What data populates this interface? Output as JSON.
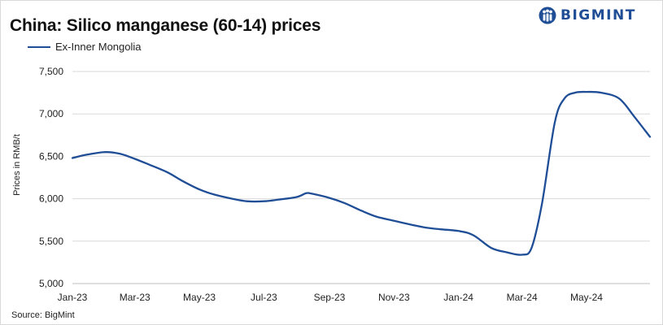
{
  "brand": {
    "name": "BIGMINT",
    "color": "#1f4e96",
    "icon": "bigmint-logo-icon"
  },
  "source": "Source: BigMint",
  "chart_data": {
    "type": "line",
    "title": "China: Silico manganese (60-14) prices",
    "xlabel": "",
    "ylabel": "Prices in RMB/t",
    "ylim": [
      5000,
      7500
    ],
    "yticks": [
      5000,
      5500,
      6000,
      6500,
      7000,
      7500
    ],
    "ytick_labels": [
      "5,000",
      "5,500",
      "6,000",
      "6,500",
      "7,000",
      "7,500"
    ],
    "x_start": "2023-01-01",
    "x_end": "2024-06-30",
    "xticks": [
      "2023-01-01",
      "2023-03-01",
      "2023-05-01",
      "2023-07-01",
      "2023-09-01",
      "2023-11-01",
      "2024-01-01",
      "2024-03-01",
      "2024-05-01"
    ],
    "xtick_labels": [
      "Jan-23",
      "Mar-23",
      "May-23",
      "Jul-23",
      "Sep-23",
      "Nov-23",
      "Jan-24",
      "Mar-24",
      "May-24"
    ],
    "grid": {
      "horizontal": true,
      "vertical": false
    },
    "legend_position": "top-left",
    "series": [
      {
        "name": "Ex-Inner Mongolia",
        "color": "#1f4e96",
        "x": [
          "2023-01-01",
          "2023-01-15",
          "2023-02-01",
          "2023-02-15",
          "2023-03-01",
          "2023-03-15",
          "2023-04-01",
          "2023-04-15",
          "2023-05-01",
          "2023-05-15",
          "2023-06-01",
          "2023-06-15",
          "2023-07-01",
          "2023-07-15",
          "2023-08-01",
          "2023-08-10",
          "2023-08-15",
          "2023-09-01",
          "2023-09-15",
          "2023-10-01",
          "2023-10-15",
          "2023-11-01",
          "2023-11-15",
          "2023-12-01",
          "2023-12-15",
          "2024-01-01",
          "2024-01-15",
          "2024-02-01",
          "2024-02-15",
          "2024-03-01",
          "2024-03-10",
          "2024-03-20",
          "2024-04-01",
          "2024-04-10",
          "2024-04-20",
          "2024-05-01",
          "2024-05-15",
          "2024-06-01",
          "2024-06-15",
          "2024-06-30"
        ],
        "values": [
          6480,
          6520,
          6550,
          6530,
          6470,
          6400,
          6310,
          6210,
          6110,
          6050,
          6000,
          5970,
          5970,
          5990,
          6020,
          6065,
          6060,
          6010,
          5950,
          5860,
          5790,
          5740,
          5700,
          5660,
          5640,
          5620,
          5570,
          5420,
          5370,
          5340,
          5420,
          5950,
          6900,
          7180,
          7250,
          7260,
          7250,
          7180,
          6970,
          6730
        ]
      }
    ]
  }
}
